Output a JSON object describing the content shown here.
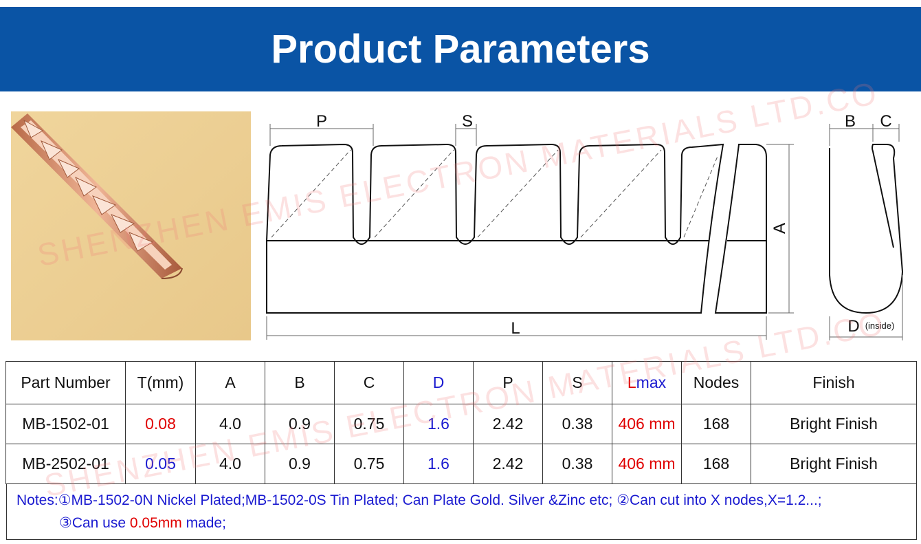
{
  "header": {
    "title": "Product Parameters"
  },
  "watermark": "SHENZHEN EMIS ELECTRON MATERIALS LTD.CO",
  "diagram": {
    "labels": {
      "p": "P",
      "s": "S",
      "a": "A",
      "l": "L",
      "b": "B",
      "c": "C",
      "d": "D",
      "inside": "(inside)"
    }
  },
  "table": {
    "headers": [
      "Part Number",
      "T(mm)",
      "A",
      "B",
      "C",
      "D",
      "P",
      "S",
      [
        "L",
        "max"
      ],
      "Nodes",
      "Finish"
    ],
    "rows": [
      [
        "MB-1502-01",
        "0.08",
        "4.0",
        "0.9",
        "0.75",
        "1.6",
        "2.42",
        "0.38",
        "406 mm",
        "168",
        "Bright Finish"
      ],
      [
        "MB-2502-01",
        "0.05",
        "4.0",
        "0.9",
        "0.75",
        "1.6",
        "2.42",
        "0.38",
        "406 mm",
        "168",
        "Bright Finish"
      ]
    ],
    "notes": {
      "line1": "Notes:①MB-1502-0N Nickel Plated;MB-1502-0S Tin Plated; Can Plate Gold. Silver &Zinc etc; ②Can cut into X nodes,X=1.2...;",
      "line2": [
        "③Can use ",
        "0.05mm",
        " made;"
      ]
    }
  }
}
